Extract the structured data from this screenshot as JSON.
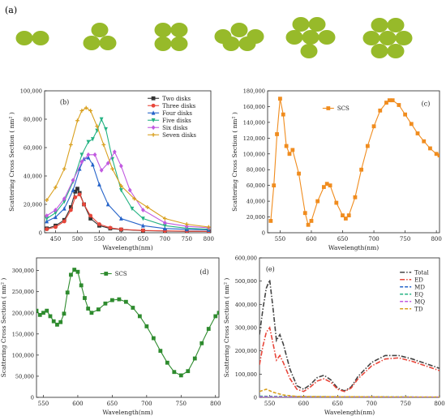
{
  "figure": {
    "panel_a_label": "(a)",
    "disk_color": "#97ba2a",
    "disk_groups": [
      "2",
      "3",
      "4",
      "5",
      "6",
      "7"
    ]
  },
  "chart_data": [
    {
      "id": "b",
      "type": "line",
      "panel_label": "(b)",
      "xlabel": "Wavelength(nm)",
      "ylabel": "Scattering Cross Section ( nm² )",
      "xlim": [
        425,
        805
      ],
      "ylim": [
        0,
        100000
      ],
      "xticks": [
        450,
        500,
        550,
        600,
        650,
        700,
        750,
        800
      ],
      "xtick_labels": [
        "450",
        "500",
        "550",
        "600",
        "650",
        "700",
        "750",
        "800"
      ],
      "yticks": [
        0,
        20000,
        40000,
        60000,
        80000,
        100000
      ],
      "ytick_labels": [
        "0",
        "20,000",
        "40,000",
        "60,000",
        "80,000",
        "100,000"
      ],
      "legend_position": "top-right",
      "series": [
        {
          "name": "Two disks",
          "color": "#333333",
          "marker": "square",
          "x": [
            430,
            450,
            470,
            485,
            495,
            500,
            505,
            515,
            530,
            550,
            575,
            600,
            650,
            700,
            750,
            800
          ],
          "y": [
            3000,
            5000,
            9000,
            18000,
            29000,
            31000,
            28000,
            20000,
            10000,
            5000,
            3000,
            2200,
            1500,
            1200,
            1000,
            900
          ]
        },
        {
          "name": "Three disks",
          "color": "#e8463a",
          "marker": "circle",
          "x": [
            430,
            450,
            470,
            485,
            495,
            505,
            515,
            530,
            550,
            575,
            600,
            650,
            700,
            750,
            800
          ],
          "y": [
            2500,
            4000,
            8000,
            16000,
            25000,
            27000,
            20000,
            12000,
            6000,
            3500,
            2400,
            1600,
            1300,
            1100,
            1000
          ]
        },
        {
          "name": "Four disks",
          "color": "#2563c9",
          "marker": "triangle",
          "x": [
            430,
            450,
            470,
            490,
            505,
            515,
            525,
            535,
            550,
            570,
            600,
            650,
            700,
            750,
            800
          ],
          "y": [
            8000,
            11000,
            17000,
            30000,
            45000,
            52000,
            53000,
            48000,
            34000,
            20000,
            10000,
            5000,
            3000,
            2400,
            2000
          ]
        },
        {
          "name": "Five disks",
          "color": "#24b383",
          "marker": "triangle-down",
          "x": [
            430,
            450,
            470,
            490,
            510,
            525,
            535,
            545,
            555,
            565,
            580,
            600,
            625,
            650,
            700,
            750,
            800
          ],
          "y": [
            10000,
            14000,
            22000,
            36000,
            55000,
            64000,
            66000,
            72000,
            80000,
            73000,
            52000,
            30000,
            17000,
            10000,
            5000,
            3200,
            2500
          ]
        },
        {
          "name": "Six disks",
          "color": "#c15ae0",
          "marker": "diamond",
          "x": [
            430,
            450,
            470,
            490,
            510,
            525,
            540,
            555,
            570,
            585,
            600,
            620,
            650,
            700,
            750,
            800
          ],
          "y": [
            12000,
            16000,
            24000,
            37000,
            50000,
            55000,
            55000,
            44000,
            49000,
            57000,
            47000,
            30000,
            16000,
            7000,
            4500,
            3500
          ]
        },
        {
          "name": "Seven disks",
          "color": "#d9a01e",
          "marker": "plus",
          "x": [
            430,
            450,
            470,
            485,
            500,
            510,
            520,
            530,
            545,
            560,
            580,
            600,
            630,
            660,
            700,
            750,
            800
          ],
          "y": [
            23000,
            32000,
            45000,
            62000,
            79000,
            86000,
            88000,
            86000,
            75000,
            62000,
            45000,
            33000,
            24000,
            18000,
            10000,
            6000,
            4000
          ]
        }
      ]
    },
    {
      "id": "c",
      "type": "line",
      "panel_label": "(c)",
      "xlabel": "Wavelength(nm)",
      "ylabel": "Scattering Cross Section ( nm² )",
      "xlim": [
        530,
        805
      ],
      "ylim": [
        0,
        180000
      ],
      "xticks": [
        550,
        600,
        650,
        700,
        750,
        800
      ],
      "xtick_labels": [
        "550",
        "600",
        "650",
        "700",
        "750",
        "800"
      ],
      "yticks": [
        0,
        20000,
        40000,
        60000,
        80000,
        100000,
        120000,
        140000,
        160000,
        180000
      ],
      "ytick_labels": [
        "0",
        "20,000",
        "40,000",
        "60,000",
        "80,000",
        "100,000",
        "120,000",
        "140,000",
        "160,000",
        "180,000"
      ],
      "legend_position": "top-left",
      "series": [
        {
          "name": "SCS",
          "color": "#f08c1e",
          "marker": "square",
          "x": [
            535,
            540,
            545,
            550,
            555,
            560,
            565,
            570,
            580,
            590,
            595,
            600,
            610,
            620,
            625,
            630,
            640,
            650,
            655,
            660,
            670,
            680,
            690,
            700,
            710,
            720,
            725,
            730,
            740,
            750,
            760,
            770,
            780,
            790,
            800,
            805
          ],
          "y": [
            15000,
            60000,
            125000,
            170000,
            150000,
            110000,
            100000,
            105000,
            75000,
            25000,
            10000,
            15000,
            40000,
            58000,
            62000,
            60000,
            38000,
            22000,
            18000,
            22000,
            45000,
            80000,
            110000,
            135000,
            155000,
            165000,
            168000,
            168000,
            162000,
            150000,
            138000,
            126000,
            116000,
            107000,
            100000,
            98000
          ]
        }
      ]
    },
    {
      "id": "d",
      "type": "line",
      "panel_label": "(d)",
      "xlabel": "Wavelength(nm)",
      "ylabel": "Scattering Cross Section ( nm² )",
      "xlim": [
        540,
        805
      ],
      "ylim": [
        0,
        330000
      ],
      "xticks": [
        550,
        600,
        650,
        700,
        750,
        800
      ],
      "xtick_labels": [
        "550",
        "600",
        "650",
        "700",
        "750",
        "800"
      ],
      "yticks": [
        0,
        50000,
        100000,
        150000,
        200000,
        250000,
        300000
      ],
      "ytick_labels": [
        "0",
        "50,000",
        "100,000",
        "150,000",
        "200,000",
        "250,000",
        "300,000"
      ],
      "legend_position": "top-left",
      "series": [
        {
          "name": "SCS",
          "color": "#2e8b2e",
          "marker": "square",
          "x": [
            540,
            545,
            550,
            555,
            560,
            565,
            570,
            575,
            580,
            585,
            590,
            595,
            600,
            605,
            610,
            615,
            620,
            630,
            640,
            650,
            660,
            670,
            680,
            690,
            700,
            710,
            720,
            730,
            740,
            750,
            760,
            770,
            780,
            790,
            800,
            805
          ],
          "y": [
            205000,
            195000,
            200000,
            205000,
            192000,
            180000,
            172000,
            178000,
            198000,
            248000,
            290000,
            302000,
            297000,
            265000,
            235000,
            210000,
            200000,
            208000,
            222000,
            230000,
            232000,
            226000,
            212000,
            192000,
            168000,
            140000,
            110000,
            82000,
            60000,
            52000,
            62000,
            92000,
            128000,
            162000,
            192000,
            200000
          ]
        }
      ]
    },
    {
      "id": "e",
      "type": "line",
      "panel_label": "(e)",
      "xlabel": "Wavelength(nm)",
      "ylabel": "Scattering Cross Section ( nm² )",
      "xlim": [
        535,
        800
      ],
      "ylim": [
        0,
        600000
      ],
      "xticks": [
        550,
        600,
        650,
        700,
        750,
        800
      ],
      "xtick_labels": [
        "550",
        "600",
        "650",
        "700",
        "750",
        "800"
      ],
      "yticks": [
        0,
        100000,
        200000,
        300000,
        400000,
        500000,
        600000
      ],
      "ytick_labels": [
        "0",
        "100,000",
        "200,000",
        "300,000",
        "400,000",
        "500,000",
        "600,000"
      ],
      "legend_position": "top-right",
      "series": [
        {
          "name": "Total",
          "color": "#444444",
          "dash": "dashdot",
          "x": [
            535,
            540,
            545,
            550,
            555,
            560,
            565,
            570,
            580,
            590,
            600,
            610,
            620,
            630,
            640,
            650,
            660,
            670,
            680,
            700,
            720,
            740,
            760,
            780,
            800
          ],
          "y": [
            270000,
            380000,
            470000,
            505000,
            380000,
            245000,
            270000,
            230000,
            120000,
            50000,
            35000,
            55000,
            85000,
            95000,
            75000,
            40000,
            28000,
            45000,
            90000,
            150000,
            180000,
            180000,
            165000,
            145000,
            125000
          ]
        },
        {
          "name": "ED",
          "color": "#e8463a",
          "dash": "dashdot",
          "x": [
            535,
            540,
            545,
            550,
            555,
            560,
            565,
            570,
            580,
            590,
            600,
            610,
            620,
            630,
            640,
            650,
            660,
            670,
            680,
            700,
            720,
            740,
            760,
            780,
            800
          ],
          "y": [
            140000,
            220000,
            280000,
            300000,
            230000,
            160000,
            180000,
            150000,
            80000,
            35000,
            25000,
            45000,
            70000,
            80000,
            65000,
            35000,
            25000,
            40000,
            80000,
            135000,
            165000,
            170000,
            155000,
            135000,
            115000
          ]
        },
        {
          "name": "MD",
          "color": "#2563c9",
          "dash": "dash",
          "x": [
            535,
            560,
            600,
            650,
            700,
            750,
            800
          ],
          "y": [
            3000,
            2500,
            2000,
            1500,
            1200,
            1000,
            800
          ]
        },
        {
          "name": "EQ",
          "color": "#24b383",
          "dash": "dash",
          "x": [
            535,
            560,
            600,
            650,
            700,
            750,
            800
          ],
          "y": [
            5000,
            4000,
            3000,
            2500,
            2000,
            1500,
            1200
          ]
        },
        {
          "name": "MQ",
          "color": "#c15ae0",
          "dash": "dash",
          "x": [
            535,
            560,
            600,
            650,
            700,
            750,
            800
          ],
          "y": [
            2000,
            1800,
            1500,
            1200,
            1000,
            800,
            600
          ]
        },
        {
          "name": "TD",
          "color": "#d9a01e",
          "dash": "dash",
          "x": [
            535,
            545,
            555,
            570,
            590,
            620,
            660,
            700,
            750,
            800
          ],
          "y": [
            25000,
            35000,
            22000,
            10000,
            4000,
            3000,
            2500,
            2000,
            1500,
            1200
          ]
        }
      ]
    }
  ]
}
